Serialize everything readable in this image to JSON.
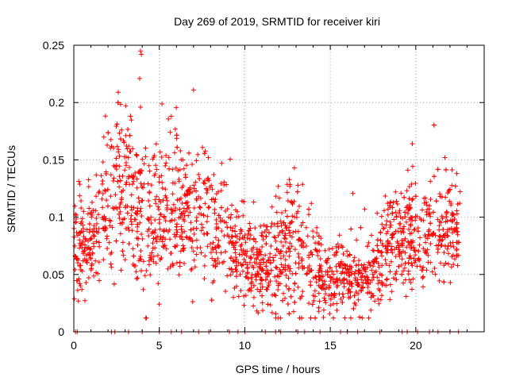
{
  "chart_data": {
    "type": "scatter",
    "title": "Day 269 of 2019, SRMTID for receiver kiri",
    "xlabel": "GPS time / hours",
    "ylabel": "SRMTID / TECUs",
    "xlim": [
      0,
      24
    ],
    "ylim": [
      0,
      0.25
    ],
    "x_ticks": [
      0,
      5,
      10,
      15,
      20
    ],
    "y_ticks": [
      0,
      0.05,
      0.1,
      0.15,
      0.2,
      0.25
    ],
    "x_tick_labels": [
      "0",
      "5",
      "10",
      "15",
      "20"
    ],
    "y_tick_labels": [
      "0",
      "0.05",
      "0.1",
      "0.15",
      "0.2",
      "0.25"
    ],
    "grid": true,
    "marker": "+",
    "series_color": "#ff0000",
    "density_profile": {
      "description": "approximate center and spread of SRMTID vs hour, sampled hourly",
      "hours": [
        0,
        1,
        2,
        3,
        4,
        5,
        6,
        7,
        8,
        9,
        10,
        11,
        12,
        13,
        14,
        15,
        16,
        17,
        18,
        19,
        20,
        21,
        22,
        22.6
      ],
      "center": [
        0.07,
        0.08,
        0.12,
        0.13,
        0.1,
        0.1,
        0.11,
        0.1,
        0.1,
        0.08,
        0.065,
        0.055,
        0.06,
        0.08,
        0.055,
        0.045,
        0.045,
        0.045,
        0.065,
        0.08,
        0.085,
        0.09,
        0.085,
        0.09
      ],
      "spread": [
        0.02,
        0.025,
        0.03,
        0.035,
        0.035,
        0.03,
        0.03,
        0.03,
        0.025,
        0.02,
        0.02,
        0.02,
        0.025,
        0.03,
        0.02,
        0.015,
        0.015,
        0.015,
        0.02,
        0.025,
        0.025,
        0.025,
        0.025,
        0.02
      ]
    },
    "peaks": [
      {
        "x": 3.9,
        "y": 0.245
      },
      {
        "x": 3.95,
        "y": 0.242
      },
      {
        "x": 3.85,
        "y": 0.221
      },
      {
        "x": 7.0,
        "y": 0.211
      },
      {
        "x": 2.6,
        "y": 0.209
      },
      {
        "x": 3.9,
        "y": 0.196
      },
      {
        "x": 5.7,
        "y": 0.188
      },
      {
        "x": 19.8,
        "y": 0.164
      },
      {
        "x": 21.7,
        "y": 0.152
      },
      {
        "x": 12.9,
        "y": 0.143
      }
    ],
    "zero_points_x": [
      0.1,
      0.2,
      2.2,
      2.4,
      3.2,
      4.0,
      5.0,
      5.7,
      6.3,
      7.3,
      7.9,
      9.1,
      9.6,
      10.0,
      11.2,
      11.8,
      12.1,
      13.1,
      13.5,
      14.4,
      15.6,
      16.0,
      16.6,
      17.9,
      19.2,
      19.5,
      20.1,
      20.8,
      21.3,
      22.0,
      22.5
    ]
  }
}
